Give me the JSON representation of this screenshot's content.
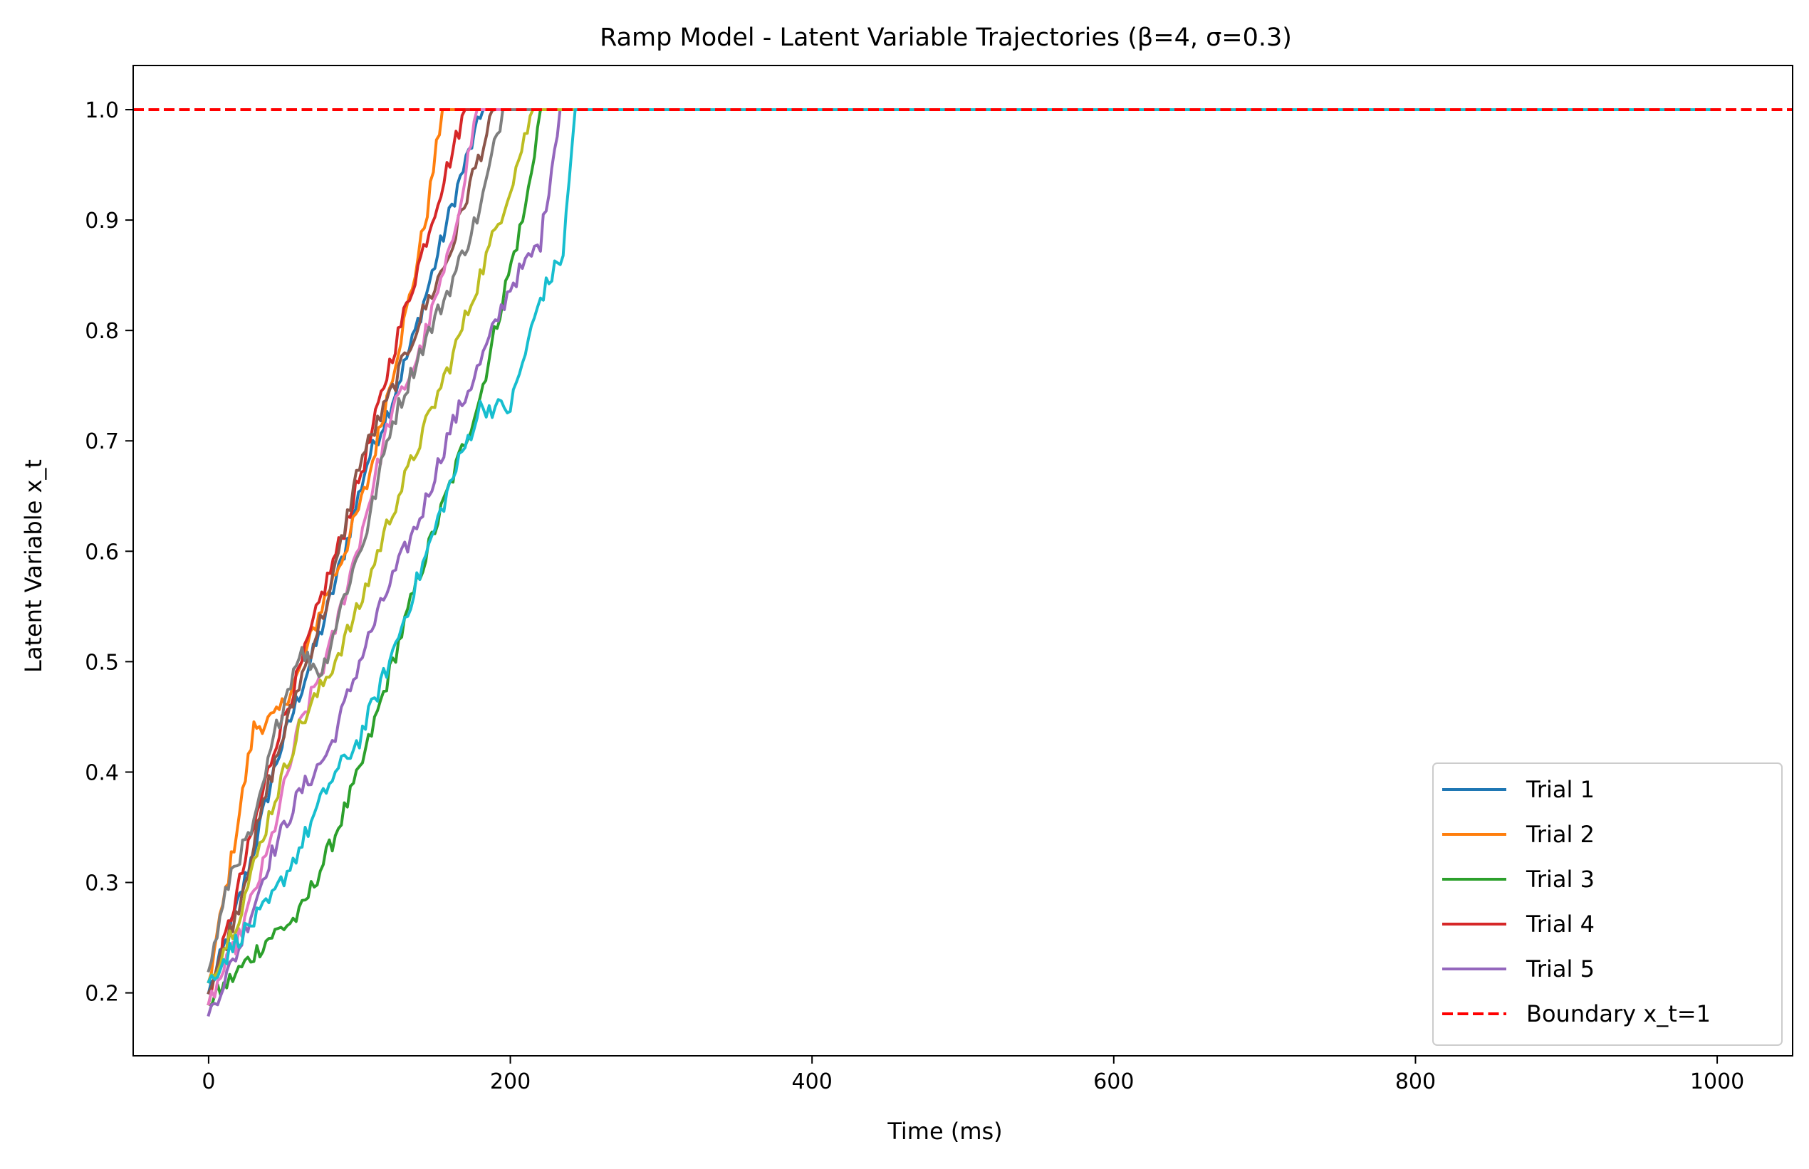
{
  "chart_data": {
    "type": "line",
    "title": "Ramp Model - Latent Variable Trajectories (β=4, σ=0.3)",
    "xlabel": "Time (ms)",
    "ylabel": "Latent Variable x_t",
    "xlim": [
      -50,
      1050
    ],
    "ylim": [
      0.143,
      1.04
    ],
    "x_ticks": [
      0,
      200,
      400,
      600,
      800,
      1000
    ],
    "x_tick_labels": [
      "0",
      "200",
      "400",
      "600",
      "800",
      "1000"
    ],
    "y_ticks": [
      0.2,
      0.3,
      0.4,
      0.5,
      0.6,
      0.7,
      0.8,
      0.9,
      1.0
    ],
    "y_tick_labels": [
      "0.2",
      "0.3",
      "0.4",
      "0.5",
      "0.6",
      "0.7",
      "0.8",
      "0.9",
      "1.0"
    ],
    "grid": false,
    "legend_position": "bottom-right",
    "boundary": {
      "name": "Boundary x_t=1",
      "y": 1.0,
      "color": "#ff0000",
      "style": "dashed"
    },
    "series": [
      {
        "name": "Trial 1",
        "color": "#1f77b4",
        "hit_time": 182,
        "points": [
          [
            0,
            0.2
          ],
          [
            15,
            0.26
          ],
          [
            30,
            0.33
          ],
          [
            45,
            0.41
          ],
          [
            60,
            0.47
          ],
          [
            75,
            0.53
          ],
          [
            90,
            0.6
          ],
          [
            105,
            0.68
          ],
          [
            120,
            0.73
          ],
          [
            135,
            0.79
          ],
          [
            150,
            0.86
          ],
          [
            165,
            0.93
          ],
          [
            182,
            1.0
          ],
          [
            1000,
            1.0
          ]
        ]
      },
      {
        "name": "Trial 2",
        "color": "#ff7f0e",
        "hit_time": 155,
        "points": [
          [
            0,
            0.21
          ],
          [
            15,
            0.32
          ],
          [
            30,
            0.44
          ],
          [
            45,
            0.45
          ],
          [
            60,
            0.49
          ],
          [
            75,
            0.55
          ],
          [
            90,
            0.6
          ],
          [
            105,
            0.66
          ],
          [
            120,
            0.75
          ],
          [
            135,
            0.84
          ],
          [
            145,
            0.91
          ],
          [
            155,
            1.0
          ],
          [
            1000,
            1.0
          ]
        ]
      },
      {
        "name": "Trial 3",
        "color": "#2ca02c",
        "hit_time": 220,
        "points": [
          [
            0,
            0.19
          ],
          [
            20,
            0.22
          ],
          [
            40,
            0.25
          ],
          [
            60,
            0.27
          ],
          [
            80,
            0.33
          ],
          [
            100,
            0.4
          ],
          [
            120,
            0.49
          ],
          [
            140,
            0.58
          ],
          [
            160,
            0.66
          ],
          [
            180,
            0.74
          ],
          [
            195,
            0.83
          ],
          [
            210,
            0.91
          ],
          [
            220,
            1.0
          ],
          [
            1000,
            1.0
          ]
        ]
      },
      {
        "name": "Trial 4",
        "color": "#d62728",
        "hit_time": 170,
        "points": [
          [
            0,
            0.19
          ],
          [
            15,
            0.27
          ],
          [
            30,
            0.35
          ],
          [
            45,
            0.43
          ],
          [
            60,
            0.49
          ],
          [
            75,
            0.56
          ],
          [
            90,
            0.62
          ],
          [
            105,
            0.69
          ],
          [
            120,
            0.77
          ],
          [
            135,
            0.84
          ],
          [
            150,
            0.91
          ],
          [
            170,
            1.0
          ],
          [
            1000,
            1.0
          ]
        ]
      },
      {
        "name": "Trial 5",
        "color": "#9467bd",
        "hit_time": 233,
        "points": [
          [
            0,
            0.18
          ],
          [
            20,
            0.24
          ],
          [
            40,
            0.32
          ],
          [
            60,
            0.38
          ],
          [
            80,
            0.42
          ],
          [
            100,
            0.5
          ],
          [
            120,
            0.57
          ],
          [
            140,
            0.63
          ],
          [
            160,
            0.71
          ],
          [
            180,
            0.77
          ],
          [
            200,
            0.84
          ],
          [
            220,
            0.88
          ],
          [
            233,
            1.0
          ],
          [
            1000,
            1.0
          ]
        ]
      }
    ],
    "extra_series": [
      {
        "color": "#8c564b",
        "hit_time": 190,
        "points": [
          [
            0,
            0.2
          ],
          [
            20,
            0.28
          ],
          [
            40,
            0.39
          ],
          [
            60,
            0.48
          ],
          [
            80,
            0.56
          ],
          [
            100,
            0.68
          ],
          [
            120,
            0.74
          ],
          [
            140,
            0.81
          ],
          [
            160,
            0.87
          ],
          [
            175,
            0.94
          ],
          [
            190,
            1.0
          ],
          [
            1000,
            1.0
          ]
        ]
      },
      {
        "color": "#e377c2",
        "hit_time": 178,
        "points": [
          [
            0,
            0.19
          ],
          [
            20,
            0.25
          ],
          [
            40,
            0.33
          ],
          [
            60,
            0.44
          ],
          [
            80,
            0.51
          ],
          [
            100,
            0.61
          ],
          [
            120,
            0.72
          ],
          [
            140,
            0.78
          ],
          [
            160,
            0.87
          ],
          [
            178,
            1.0
          ],
          [
            1000,
            1.0
          ]
        ]
      },
      {
        "color": "#7f7f7f",
        "hit_time": 195,
        "points": [
          [
            0,
            0.22
          ],
          [
            15,
            0.31
          ],
          [
            30,
            0.35
          ],
          [
            45,
            0.44
          ],
          [
            60,
            0.51
          ],
          [
            75,
            0.49
          ],
          [
            90,
            0.56
          ],
          [
            105,
            0.62
          ],
          [
            120,
            0.71
          ],
          [
            140,
            0.78
          ],
          [
            160,
            0.84
          ],
          [
            180,
            0.91
          ],
          [
            195,
            1.0
          ],
          [
            1000,
            1.0
          ]
        ]
      },
      {
        "color": "#bcbd22",
        "hit_time": 215,
        "points": [
          [
            0,
            0.21
          ],
          [
            20,
            0.27
          ],
          [
            40,
            0.36
          ],
          [
            60,
            0.44
          ],
          [
            80,
            0.49
          ],
          [
            100,
            0.55
          ],
          [
            120,
            0.63
          ],
          [
            140,
            0.7
          ],
          [
            160,
            0.77
          ],
          [
            180,
            0.85
          ],
          [
            200,
            0.93
          ],
          [
            215,
            1.0
          ],
          [
            1000,
            1.0
          ]
        ]
      },
      {
        "color": "#17becf",
        "hit_time": 243,
        "points": [
          [
            0,
            0.21
          ],
          [
            20,
            0.25
          ],
          [
            40,
            0.28
          ],
          [
            60,
            0.33
          ],
          [
            80,
            0.39
          ],
          [
            100,
            0.43
          ],
          [
            120,
            0.5
          ],
          [
            140,
            0.58
          ],
          [
            160,
            0.66
          ],
          [
            180,
            0.73
          ],
          [
            200,
            0.73
          ],
          [
            220,
            0.83
          ],
          [
            235,
            0.87
          ],
          [
            243,
            1.0
          ],
          [
            1000,
            1.0
          ]
        ]
      }
    ]
  }
}
